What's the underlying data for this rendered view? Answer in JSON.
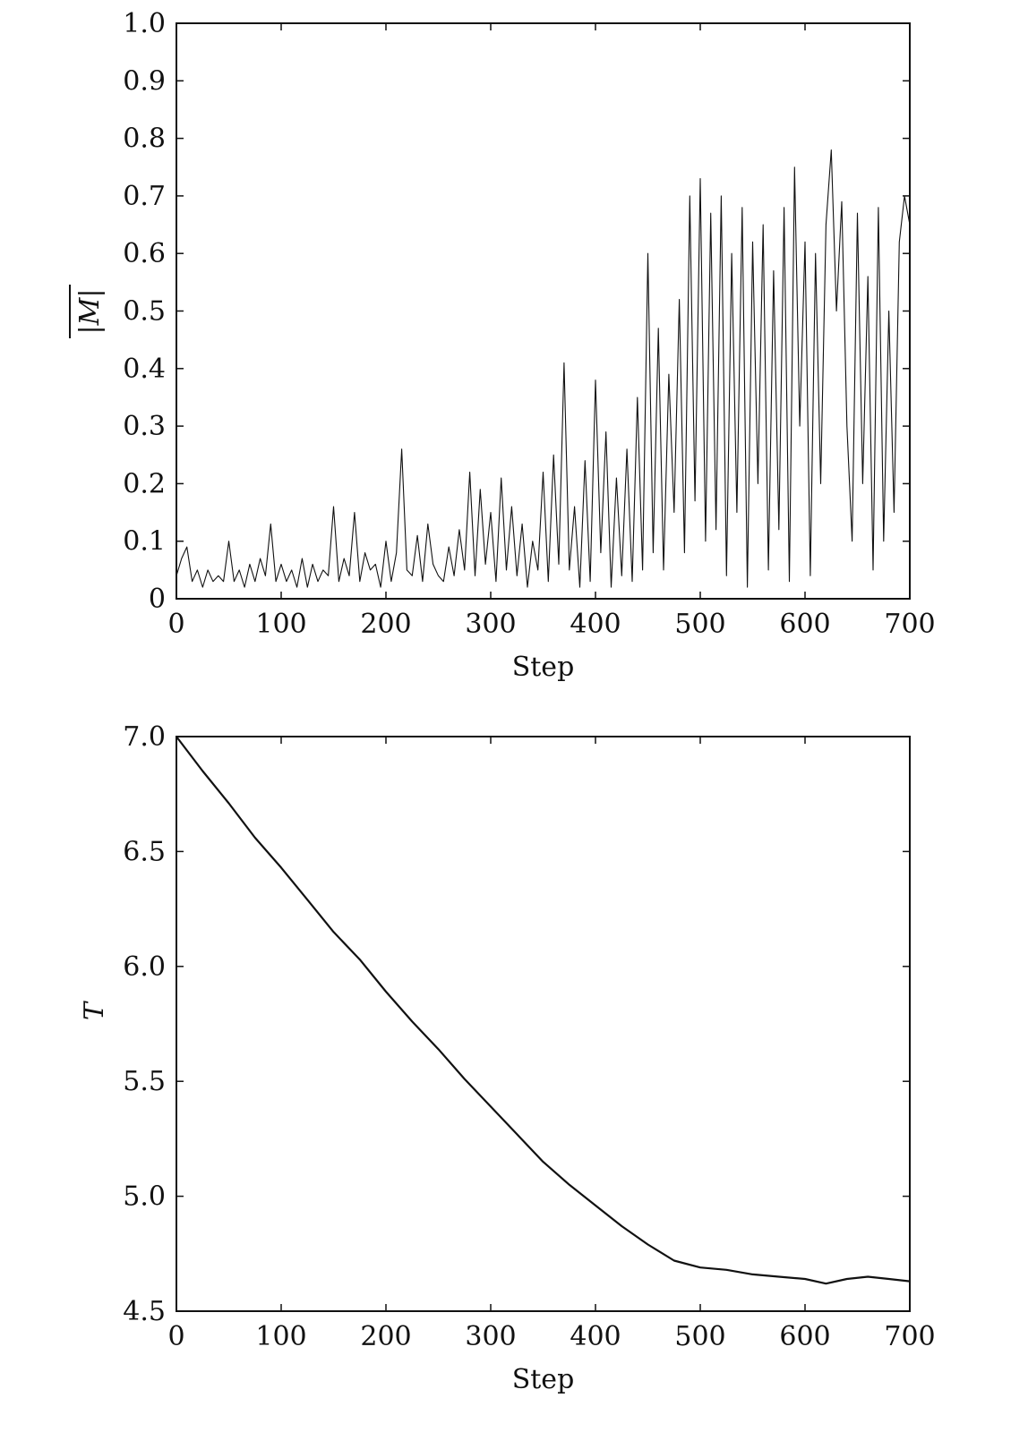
{
  "chart_data": [
    {
      "type": "line",
      "title": "",
      "xlabel": "Step",
      "ylabel": "|M|",
      "xlim": [
        0,
        700
      ],
      "ylim": [
        0,
        1.0
      ],
      "grid": false,
      "x_ticks": [
        0,
        100,
        200,
        300,
        400,
        500,
        600,
        700
      ],
      "y_ticks": [
        0,
        0.1,
        0.2,
        0.3,
        0.4,
        0.5,
        0.6,
        0.7,
        0.8,
        0.9,
        1.0
      ],
      "x_tick_labels": [
        "0",
        "100",
        "200",
        "300",
        "400",
        "500",
        "600",
        "700"
      ],
      "y_tick_labels": [
        "0",
        "0.1",
        "0.2",
        "0.3",
        "0.4",
        "0.5",
        "0.6",
        "0.7",
        "0.8",
        "0.9",
        "1.0"
      ],
      "series": [
        {
          "color": "#111111",
          "x": [
            0,
            5,
            10,
            15,
            20,
            25,
            30,
            35,
            40,
            45,
            50,
            55,
            60,
            65,
            70,
            75,
            80,
            85,
            90,
            95,
            100,
            105,
            110,
            115,
            120,
            125,
            130,
            135,
            140,
            145,
            150,
            155,
            160,
            165,
            170,
            175,
            180,
            185,
            190,
            195,
            200,
            205,
            210,
            215,
            220,
            225,
            230,
            235,
            240,
            245,
            250,
            255,
            260,
            265,
            270,
            275,
            280,
            285,
            290,
            295,
            300,
            305,
            310,
            315,
            320,
            325,
            330,
            335,
            340,
            345,
            350,
            355,
            360,
            365,
            370,
            375,
            380,
            385,
            390,
            395,
            400,
            405,
            410,
            415,
            420,
            425,
            430,
            435,
            440,
            445,
            450,
            455,
            460,
            465,
            470,
            475,
            480,
            485,
            490,
            495,
            500,
            505,
            510,
            515,
            520,
            525,
            530,
            535,
            540,
            545,
            550,
            555,
            560,
            565,
            570,
            575,
            580,
            585,
            590,
            595,
            600,
            605,
            610,
            615,
            620,
            625,
            630,
            635,
            640,
            645,
            650,
            655,
            660,
            665,
            670,
            675,
            680,
            685,
            690,
            695,
            700
          ],
          "y": [
            0.04,
            0.07,
            0.09,
            0.03,
            0.05,
            0.02,
            0.05,
            0.03,
            0.04,
            0.03,
            0.1,
            0.03,
            0.05,
            0.02,
            0.06,
            0.03,
            0.07,
            0.04,
            0.13,
            0.03,
            0.06,
            0.03,
            0.05,
            0.02,
            0.07,
            0.02,
            0.06,
            0.03,
            0.05,
            0.04,
            0.16,
            0.03,
            0.07,
            0.04,
            0.15,
            0.03,
            0.08,
            0.05,
            0.06,
            0.02,
            0.1,
            0.03,
            0.08,
            0.26,
            0.05,
            0.04,
            0.11,
            0.03,
            0.13,
            0.06,
            0.04,
            0.03,
            0.09,
            0.04,
            0.12,
            0.05,
            0.22,
            0.04,
            0.19,
            0.06,
            0.15,
            0.03,
            0.21,
            0.05,
            0.16,
            0.04,
            0.13,
            0.02,
            0.1,
            0.05,
            0.22,
            0.03,
            0.25,
            0.06,
            0.41,
            0.05,
            0.16,
            0.02,
            0.24,
            0.03,
            0.38,
            0.08,
            0.29,
            0.02,
            0.21,
            0.04,
            0.26,
            0.03,
            0.35,
            0.05,
            0.6,
            0.08,
            0.47,
            0.05,
            0.39,
            0.15,
            0.52,
            0.08,
            0.7,
            0.17,
            0.73,
            0.1,
            0.67,
            0.12,
            0.7,
            0.04,
            0.6,
            0.15,
            0.68,
            0.02,
            0.62,
            0.2,
            0.65,
            0.05,
            0.57,
            0.12,
            0.68,
            0.03,
            0.75,
            0.3,
            0.62,
            0.04,
            0.6,
            0.2,
            0.65,
            0.78,
            0.5,
            0.69,
            0.3,
            0.1,
            0.67,
            0.2,
            0.56,
            0.05,
            0.68,
            0.1,
            0.5,
            0.15,
            0.62,
            0.7,
            0.65
          ]
        }
      ]
    },
    {
      "type": "line",
      "title": "",
      "xlabel": "Step",
      "ylabel": "T",
      "xlim": [
        0,
        700
      ],
      "ylim": [
        4.5,
        7.0
      ],
      "grid": false,
      "x_ticks": [
        0,
        100,
        200,
        300,
        400,
        500,
        600,
        700
      ],
      "y_ticks": [
        4.5,
        5.0,
        5.5,
        6.0,
        6.5,
        7.0
      ],
      "x_tick_labels": [
        "0",
        "100",
        "200",
        "300",
        "400",
        "500",
        "600",
        "700"
      ],
      "y_tick_labels": [
        "4.5",
        "5.0",
        "5.5",
        "6.0",
        "6.5",
        "7.0"
      ],
      "series": [
        {
          "color": "#111111",
          "x": [
            0,
            25,
            50,
            75,
            100,
            125,
            150,
            175,
            200,
            225,
            250,
            275,
            300,
            325,
            350,
            375,
            400,
            425,
            450,
            475,
            500,
            525,
            550,
            575,
            600,
            620,
            640,
            660,
            680,
            700
          ],
          "y": [
            7.0,
            6.85,
            6.71,
            6.56,
            6.43,
            6.29,
            6.15,
            6.03,
            5.89,
            5.76,
            5.64,
            5.51,
            5.39,
            5.27,
            5.15,
            5.05,
            4.96,
            4.87,
            4.79,
            4.72,
            4.69,
            4.68,
            4.66,
            4.65,
            4.64,
            4.62,
            4.64,
            4.65,
            4.64,
            4.63
          ]
        }
      ]
    }
  ]
}
